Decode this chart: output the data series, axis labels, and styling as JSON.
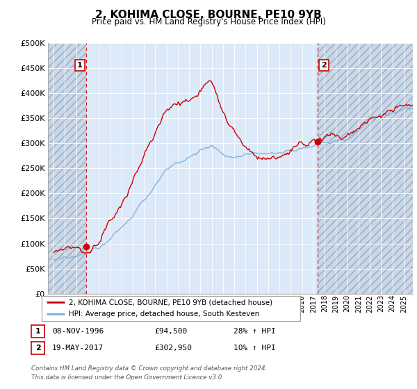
{
  "title": "2, KOHIMA CLOSE, BOURNE, PE10 9YB",
  "subtitle": "Price paid vs. HM Land Registry's House Price Index (HPI)",
  "ylim": [
    0,
    500000
  ],
  "yticks": [
    0,
    50000,
    100000,
    150000,
    200000,
    250000,
    300000,
    350000,
    400000,
    450000,
    500000
  ],
  "background_color": "#dce9f8",
  "sale1_date": 1996.86,
  "sale1_price": 94500,
  "sale1_label": "1",
  "sale2_date": 2017.38,
  "sale2_price": 302950,
  "sale2_label": "2",
  "line1_color": "#cc0000",
  "line2_color": "#7aaddb",
  "legend_line1": "2, KOHIMA CLOSE, BOURNE, PE10 9YB (detached house)",
  "legend_line2": "HPI: Average price, detached house, South Kesteven",
  "table_row1": [
    "1",
    "08-NOV-1996",
    "£94,500",
    "28% ↑ HPI"
  ],
  "table_row2": [
    "2",
    "19-MAY-2017",
    "£302,950",
    "10% ↑ HPI"
  ],
  "footer": "Contains HM Land Registry data © Crown copyright and database right 2024.\nThis data is licensed under the Open Government Licence v3.0.",
  "xmin": 1993.5,
  "xmax": 2025.8
}
